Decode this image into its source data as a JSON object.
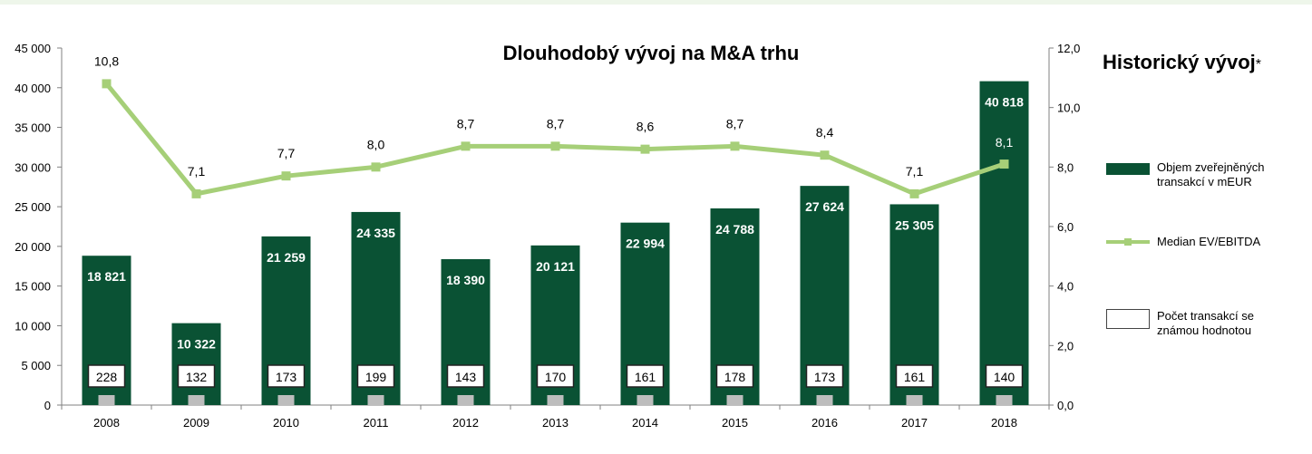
{
  "chart_data": {
    "type": "bar",
    "title": "Dlouhodobý vývoj na M&A trhu",
    "categories": [
      "2008",
      "2009",
      "2010",
      "2011",
      "2012",
      "2013",
      "2014",
      "2015",
      "2016",
      "2017",
      "2018"
    ],
    "series": [
      {
        "name": "Objem zveřejněných transakcí v mEUR",
        "type": "bar",
        "axis": "left",
        "values": [
          18821,
          10322,
          21259,
          24335,
          18390,
          20121,
          22994,
          24788,
          27624,
          25305,
          40818
        ],
        "labels": [
          "18 821",
          "10 322",
          "21 259",
          "24 335",
          "18 390",
          "20 121",
          "22 994",
          "24 788",
          "27 624",
          "25 305",
          "40 818"
        ]
      },
      {
        "name": "Median EV/EBITDA",
        "type": "line",
        "axis": "right",
        "values": [
          10.8,
          7.1,
          7.7,
          8.0,
          8.7,
          8.7,
          8.6,
          8.7,
          8.4,
          7.1,
          8.1
        ],
        "labels": [
          "10,8",
          "7,1",
          "7,7",
          "8,0",
          "8,7",
          "8,7",
          "8,6",
          "8,7",
          "8,4",
          "7,1",
          "8,1"
        ]
      },
      {
        "name": "Počet transakcí se známou hodnotou",
        "type": "count",
        "values": [
          228,
          132,
          173,
          199,
          143,
          170,
          161,
          178,
          173,
          161,
          140
        ],
        "labels": [
          "228",
          "132",
          "173",
          "199",
          "143",
          "170",
          "161",
          "178",
          "173",
          "161",
          "140"
        ]
      }
    ],
    "y_left": {
      "range": [
        0,
        45000
      ],
      "ticks": [
        0,
        5000,
        10000,
        15000,
        20000,
        25000,
        30000,
        35000,
        40000,
        45000
      ],
      "tick_labels": [
        "0",
        "5 000",
        "10 000",
        "15 000",
        "20 000",
        "25 000",
        "30 000",
        "35 000",
        "40 000",
        "45 000"
      ]
    },
    "y_right": {
      "range": [
        0,
        12
      ],
      "ticks": [
        0,
        2,
        4,
        6,
        8,
        10,
        12
      ],
      "tick_labels": [
        "0,0",
        "2,0",
        "4,0",
        "6,0",
        "8,0",
        "10,0",
        "12,0"
      ]
    },
    "grid": false,
    "legend_placement": "right",
    "colors": {
      "bar": "#0a5234",
      "line": "#a6cf78",
      "count_box_border": "#222222",
      "tick_marker": "#bdbdbd"
    }
  },
  "side": {
    "title": "Historický vývoj",
    "title_mark": "*"
  },
  "legend": {
    "bar_label": "Objem zveřejněných transakcí v mEUR",
    "line_label": "Median EV/EBITDA",
    "box_label": "Počet transakcí se známou hodnotou"
  }
}
